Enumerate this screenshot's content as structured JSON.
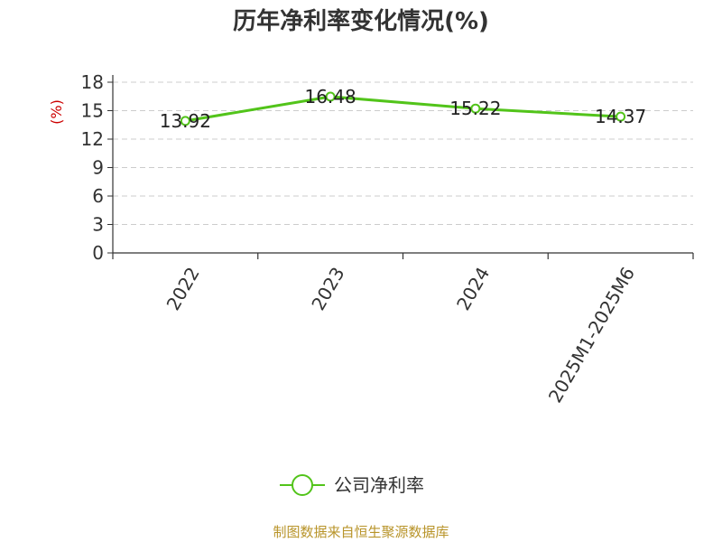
{
  "chart_data": {
    "type": "line",
    "title": "历年净利率变化情况(%)",
    "ylabel": "(%)",
    "categories": [
      "2022",
      "2023",
      "2024",
      "2025M1-2025M6"
    ],
    "series": [
      {
        "name": "公司净利率",
        "values": [
          13.92,
          16.48,
          15.22,
          14.37
        ],
        "labels": [
          "13.92",
          "16.48",
          "15.22",
          "14.37"
        ]
      }
    ],
    "ylim": [
      0,
      18
    ],
    "yticks": [
      0,
      3,
      6,
      9,
      12,
      15,
      18
    ],
    "grid": true,
    "legend_position": "bottom",
    "colors": {
      "series": "#52c41a",
      "grid": "#cccccc",
      "axis": "#333333",
      "ylabel": "#cc0000"
    }
  },
  "source": "制图数据来自恒生聚源数据库"
}
